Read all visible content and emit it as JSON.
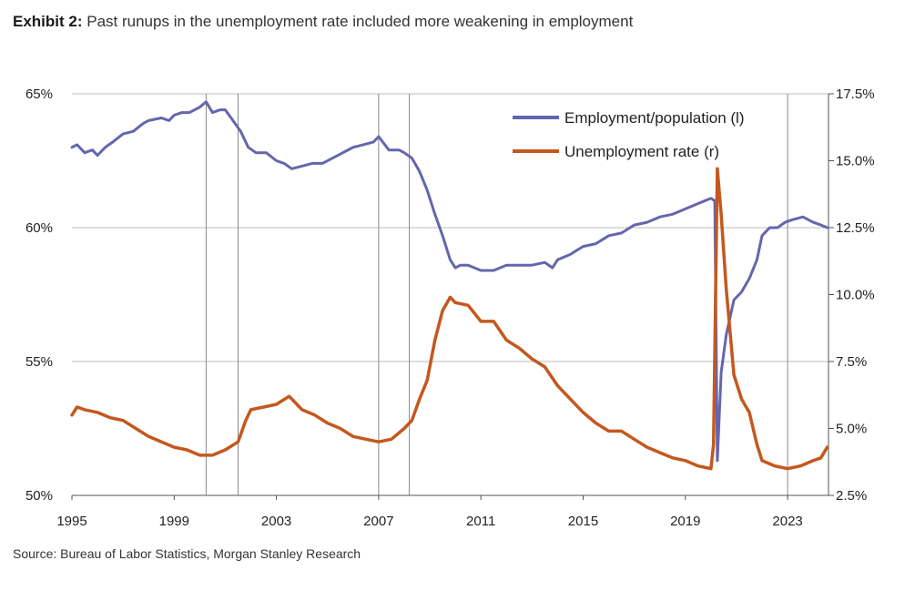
{
  "header": {
    "prefix": "Exhibit 2:",
    "title": "Past runups in the unemployment rate included more weakening in employment"
  },
  "footer": {
    "source": "Source: Bureau of Labor Statistics, Morgan Stanley Research"
  },
  "chart_data": {
    "type": "line",
    "title": "Past runups in the unemployment rate included more weakening in employment",
    "x_range": [
      1995.0,
      2024.6
    ],
    "x_ticks": [
      1995,
      1999,
      2003,
      2007,
      2011,
      2015,
      2019,
      2023
    ],
    "x_tick_labels": [
      "1995",
      "1999",
      "2003",
      "2007",
      "2011",
      "2015",
      "2019",
      "2023"
    ],
    "left_axis": {
      "range": [
        50,
        65
      ],
      "ticks": [
        50,
        55,
        60,
        65
      ],
      "tick_labels": [
        "50%",
        "55%",
        "60%",
        "65%"
      ]
    },
    "right_axis": {
      "range": [
        2.5,
        17.5
      ],
      "ticks": [
        2.5,
        5.0,
        7.5,
        10.0,
        12.5,
        15.0,
        17.5
      ],
      "tick_labels": [
        "2.5%",
        "5.0%",
        "7.5%",
        "10.0%",
        "12.5%",
        "15.0%",
        "17.5%"
      ]
    },
    "horizontal_grid": true,
    "vertical_markers": [
      2000.25,
      2001.5,
      2007.0,
      2008.2,
      2023.0,
      2024.6
    ],
    "legend_position": "top-right",
    "series": [
      {
        "name": "Employment/population (l)",
        "axis": "left",
        "color": "#6466ad",
        "points": [
          [
            1995.0,
            63.0
          ],
          [
            1995.2,
            63.1
          ],
          [
            1995.5,
            62.8
          ],
          [
            1995.8,
            62.9
          ],
          [
            1996.0,
            62.7
          ],
          [
            1996.3,
            63.0
          ],
          [
            1996.6,
            63.2
          ],
          [
            1997.0,
            63.5
          ],
          [
            1997.4,
            63.6
          ],
          [
            1997.8,
            63.9
          ],
          [
            1998.0,
            64.0
          ],
          [
            1998.5,
            64.1
          ],
          [
            1998.8,
            64.0
          ],
          [
            1999.0,
            64.2
          ],
          [
            1999.3,
            64.3
          ],
          [
            1999.6,
            64.3
          ],
          [
            2000.0,
            64.5
          ],
          [
            2000.25,
            64.7
          ],
          [
            2000.5,
            64.3
          ],
          [
            2000.8,
            64.4
          ],
          [
            2001.0,
            64.4
          ],
          [
            2001.3,
            64.0
          ],
          [
            2001.6,
            63.6
          ],
          [
            2001.9,
            63.0
          ],
          [
            2002.2,
            62.8
          ],
          [
            2002.6,
            62.8
          ],
          [
            2003.0,
            62.5
          ],
          [
            2003.3,
            62.4
          ],
          [
            2003.6,
            62.2
          ],
          [
            2004.0,
            62.3
          ],
          [
            2004.4,
            62.4
          ],
          [
            2004.8,
            62.4
          ],
          [
            2005.2,
            62.6
          ],
          [
            2005.6,
            62.8
          ],
          [
            2006.0,
            63.0
          ],
          [
            2006.4,
            63.1
          ],
          [
            2006.8,
            63.2
          ],
          [
            2007.0,
            63.4
          ],
          [
            2007.4,
            62.9
          ],
          [
            2007.8,
            62.9
          ],
          [
            2008.0,
            62.8
          ],
          [
            2008.3,
            62.6
          ],
          [
            2008.6,
            62.1
          ],
          [
            2008.9,
            61.4
          ],
          [
            2009.2,
            60.5
          ],
          [
            2009.5,
            59.7
          ],
          [
            2009.8,
            58.8
          ],
          [
            2010.0,
            58.5
          ],
          [
            2010.2,
            58.6
          ],
          [
            2010.5,
            58.6
          ],
          [
            2011.0,
            58.4
          ],
          [
            2011.5,
            58.4
          ],
          [
            2012.0,
            58.6
          ],
          [
            2012.5,
            58.6
          ],
          [
            2013.0,
            58.6
          ],
          [
            2013.5,
            58.7
          ],
          [
            2013.8,
            58.5
          ],
          [
            2014.0,
            58.8
          ],
          [
            2014.5,
            59.0
          ],
          [
            2015.0,
            59.3
          ],
          [
            2015.5,
            59.4
          ],
          [
            2016.0,
            59.7
          ],
          [
            2016.5,
            59.8
          ],
          [
            2017.0,
            60.1
          ],
          [
            2017.5,
            60.2
          ],
          [
            2018.0,
            60.4
          ],
          [
            2018.5,
            60.5
          ],
          [
            2019.0,
            60.7
          ],
          [
            2019.5,
            60.9
          ],
          [
            2020.0,
            61.1
          ],
          [
            2020.15,
            61.0
          ],
          [
            2020.25,
            51.3
          ],
          [
            2020.4,
            54.6
          ],
          [
            2020.6,
            56.0
          ],
          [
            2020.9,
            57.3
          ],
          [
            2021.2,
            57.6
          ],
          [
            2021.5,
            58.1
          ],
          [
            2021.8,
            58.8
          ],
          [
            2022.0,
            59.7
          ],
          [
            2022.3,
            60.0
          ],
          [
            2022.6,
            60.0
          ],
          [
            2022.9,
            60.2
          ],
          [
            2023.2,
            60.3
          ],
          [
            2023.6,
            60.4
          ],
          [
            2024.0,
            60.2
          ],
          [
            2024.3,
            60.1
          ],
          [
            2024.55,
            60.0
          ]
        ]
      },
      {
        "name": "Unemployment rate (r)",
        "axis": "right",
        "color": "#c4581e",
        "points": [
          [
            1995.0,
            5.5
          ],
          [
            1995.2,
            5.8
          ],
          [
            1995.5,
            5.7
          ],
          [
            1996.0,
            5.6
          ],
          [
            1996.5,
            5.4
          ],
          [
            1997.0,
            5.3
          ],
          [
            1997.5,
            5.0
          ],
          [
            1998.0,
            4.7
          ],
          [
            1998.5,
            4.5
          ],
          [
            1999.0,
            4.3
          ],
          [
            1999.5,
            4.2
          ],
          [
            2000.0,
            4.0
          ],
          [
            2000.5,
            4.0
          ],
          [
            2001.0,
            4.2
          ],
          [
            2001.5,
            4.5
          ],
          [
            2001.8,
            5.3
          ],
          [
            2002.0,
            5.7
          ],
          [
            2002.5,
            5.8
          ],
          [
            2003.0,
            5.9
          ],
          [
            2003.5,
            6.2
          ],
          [
            2003.8,
            5.9
          ],
          [
            2004.0,
            5.7
          ],
          [
            2004.5,
            5.5
          ],
          [
            2005.0,
            5.2
          ],
          [
            2005.5,
            5.0
          ],
          [
            2006.0,
            4.7
          ],
          [
            2006.5,
            4.6
          ],
          [
            2007.0,
            4.5
          ],
          [
            2007.5,
            4.6
          ],
          [
            2008.0,
            5.0
          ],
          [
            2008.3,
            5.3
          ],
          [
            2008.6,
            6.1
          ],
          [
            2008.9,
            6.8
          ],
          [
            2009.2,
            8.3
          ],
          [
            2009.5,
            9.4
          ],
          [
            2009.8,
            9.9
          ],
          [
            2010.0,
            9.7
          ],
          [
            2010.5,
            9.6
          ],
          [
            2011.0,
            9.0
          ],
          [
            2011.5,
            9.0
          ],
          [
            2012.0,
            8.3
          ],
          [
            2012.5,
            8.0
          ],
          [
            2013.0,
            7.6
          ],
          [
            2013.5,
            7.3
          ],
          [
            2014.0,
            6.6
          ],
          [
            2014.5,
            6.1
          ],
          [
            2015.0,
            5.6
          ],
          [
            2015.5,
            5.2
          ],
          [
            2016.0,
            4.9
          ],
          [
            2016.5,
            4.9
          ],
          [
            2017.0,
            4.6
          ],
          [
            2017.5,
            4.3
          ],
          [
            2018.0,
            4.1
          ],
          [
            2018.5,
            3.9
          ],
          [
            2019.0,
            3.8
          ],
          [
            2019.5,
            3.6
          ],
          [
            2020.0,
            3.5
          ],
          [
            2020.1,
            4.4
          ],
          [
            2020.25,
            14.7
          ],
          [
            2020.4,
            13.0
          ],
          [
            2020.6,
            10.2
          ],
          [
            2020.9,
            7.0
          ],
          [
            2021.2,
            6.1
          ],
          [
            2021.5,
            5.6
          ],
          [
            2021.8,
            4.4
          ],
          [
            2022.0,
            3.8
          ],
          [
            2022.5,
            3.6
          ],
          [
            2023.0,
            3.5
          ],
          [
            2023.5,
            3.6
          ],
          [
            2024.0,
            3.8
          ],
          [
            2024.3,
            3.9
          ],
          [
            2024.55,
            4.3
          ]
        ]
      }
    ]
  }
}
